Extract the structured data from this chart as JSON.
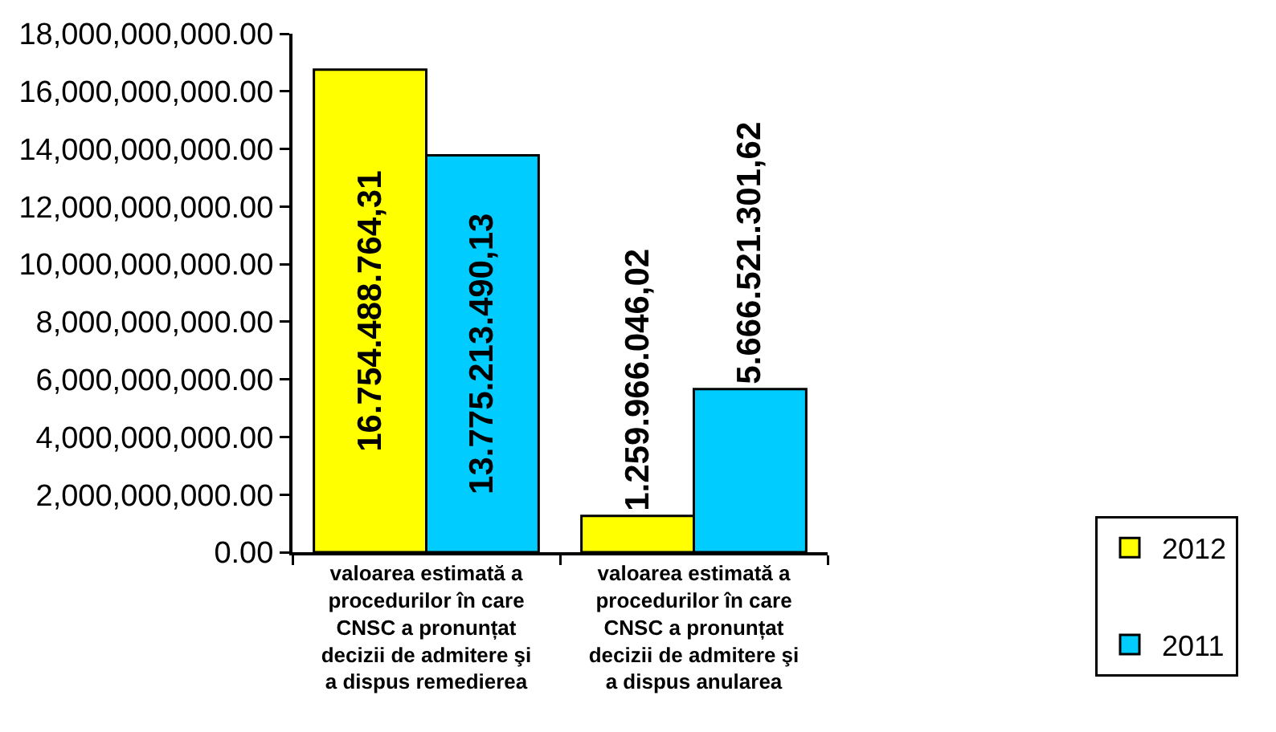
{
  "chart_data": {
    "type": "bar",
    "categories": [
      "valoarea estimată a procedurilor în care CNSC a pronunțat decizii de admitere şi a dispus remedierea",
      "valoarea estimată a procedurilor în care CNSC a pronunțat decizii de admitere şi a dispus anularea"
    ],
    "series": [
      {
        "name": "2012",
        "color": "#ffff00",
        "values": [
          16754488764.31,
          1259966046.02
        ],
        "value_labels": [
          "16.754.488.764,31",
          "1.259.966.046,02"
        ]
      },
      {
        "name": "2011",
        "color": "#00ccff",
        "values": [
          13775213490.13,
          5666521301.62
        ],
        "value_labels": [
          "13.775.213.490,13",
          "5.666.521.301,62"
        ]
      }
    ],
    "ylim": [
      0,
      18000000000
    ],
    "yticks": [
      {
        "value": 0,
        "label": "0.00"
      },
      {
        "value": 2000000000,
        "label": "2,000,000,000.00"
      },
      {
        "value": 4000000000,
        "label": "4,000,000,000.00"
      },
      {
        "value": 6000000000,
        "label": "6,000,000,000.00"
      },
      {
        "value": 8000000000,
        "label": "8,000,000,000.00"
      },
      {
        "value": 10000000000,
        "label": "10,000,000,000.00"
      },
      {
        "value": 12000000000,
        "label": "12,000,000,000.00"
      },
      {
        "value": 14000000000,
        "label": "14,000,000,000.00"
      },
      {
        "value": 16000000000,
        "label": "16,000,000,000.00"
      },
      {
        "value": 18000000000,
        "label": "18,000,000,000.00"
      }
    ],
    "grid": false,
    "legend": "bottom right"
  }
}
